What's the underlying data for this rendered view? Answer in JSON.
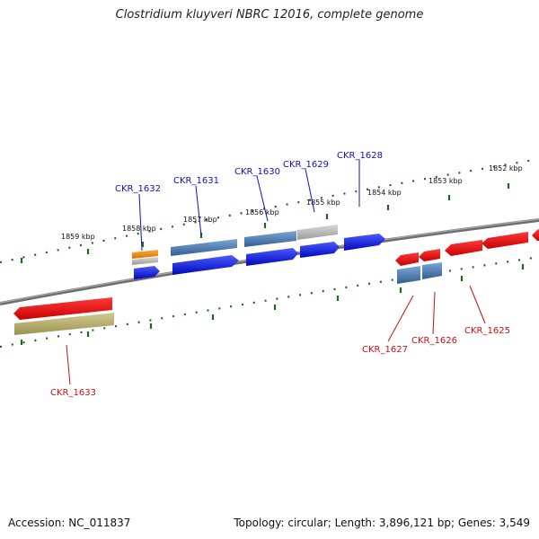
{
  "title": "Clostridium kluyveri NBRC 12016, complete genome",
  "accession_text": "Accession: NC_011837",
  "stats_text": "Topology: circular; Length: 3,896,121 bp; Genes: 3,549",
  "colors": {
    "forward_cds": "#0a14e0",
    "reverse_cds": "#ee1111",
    "rna_orange": "#f08a10",
    "pseudo_grey": "#b8b8b8",
    "steelblue_feature": "#4a7ab0",
    "olive_feature": "#b8b070",
    "backbone": "#808080",
    "tick_green": "#1a6a1a",
    "forward_label": "#1010c0",
    "reverse_label": "#cc1010"
  },
  "kbp_ticks": [
    "1859 kbp",
    "1858 kbp",
    "1857 kbp",
    "1856 kbp",
    "1855 kbp",
    "1854 kbp",
    "1853 kbp",
    "1852 kbp"
  ],
  "genes_forward": [
    "CKR_1632",
    "CKR_1631",
    "CKR_1630",
    "CKR_1629",
    "CKR_1628"
  ],
  "genes_reverse": [
    "CKR_1627",
    "CKR_1626",
    "CKR_1625",
    "CKR_1633"
  ]
}
